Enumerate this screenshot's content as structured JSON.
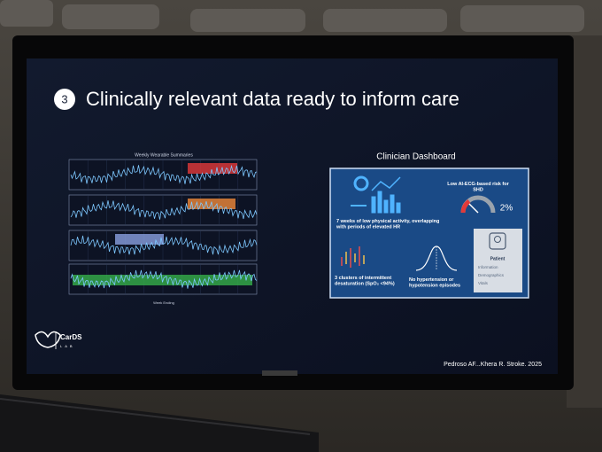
{
  "slide": {
    "number": "3",
    "title": "Clinically relevant data ready to inform care",
    "left_panel": {
      "title": "Weekly Wearable Summaries",
      "x_label": "Week Ending"
    },
    "dashboard": {
      "title": "Clinician Dashboard",
      "risk_text": "Low AI-ECG-based risk for SHD",
      "risk_value": "2%",
      "activity_text": "7 weeks of low physical activity, overlapping with periods of elevated HR",
      "desat_text": "3 clusters of intermittent desaturation (SpO₂ <94%)",
      "bp_text": "No hypertension or hypotension episodes",
      "patient": {
        "label": "Patient",
        "items": [
          "Information",
          "Demographics",
          "Vitals"
        ]
      }
    },
    "logo": {
      "name": "CarDS",
      "sub": "LAB"
    },
    "citation": "Pedroso AF...Khera R. Stroke. 2025"
  }
}
